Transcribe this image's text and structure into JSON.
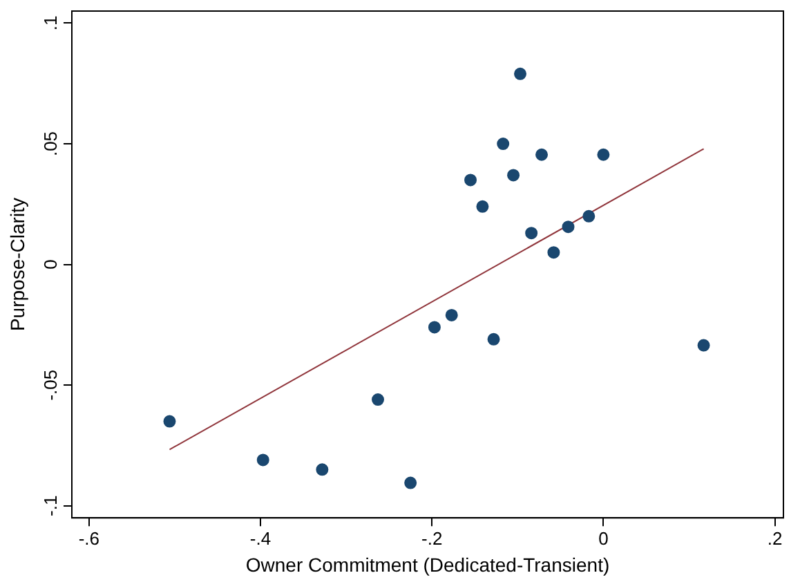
{
  "chart_data": {
    "type": "scatter",
    "xlabel": "Owner Commitment (Dedicated-Transient)",
    "ylabel": "Purpose-Clarity",
    "marker": "circle",
    "grid": false,
    "legend": false,
    "xlim": [
      -0.62,
      0.21
    ],
    "ylim": [
      -0.105,
      0.105
    ],
    "xticks": [
      {
        "value": -0.6,
        "label": "-.6"
      },
      {
        "value": -0.4,
        "label": "-.4"
      },
      {
        "value": -0.2,
        "label": "-.2"
      },
      0,
      {
        "value": 0.2,
        "label": ".2"
      }
    ],
    "yticks": [
      {
        "value": -0.1,
        "label": "-.1"
      },
      {
        "value": -0.05,
        "label": "-.05"
      },
      0,
      {
        "value": 0.05,
        "label": ".05"
      },
      {
        "value": 0.1,
        "label": ".1"
      }
    ],
    "series": [
      {
        "color": "#1a476f",
        "x": [
          -0.506,
          -0.397,
          -0.328,
          -0.263,
          -0.225,
          -0.197,
          -0.177,
          -0.128,
          -0.155,
          -0.141,
          -0.117,
          -0.105,
          -0.097,
          -0.084,
          -0.072,
          -0.058,
          -0.041,
          -0.017,
          0.0,
          0.117
        ],
        "values": [
          -0.065,
          -0.081,
          -0.085,
          -0.056,
          -0.0905,
          -0.026,
          -0.021,
          -0.031,
          0.035,
          0.024,
          0.05,
          0.037,
          0.079,
          0.013,
          0.0455,
          0.005,
          0.0156,
          0.02,
          0.0455,
          -0.0335
        ]
      },
      {
        "type": "line",
        "color": "#90353b",
        "marker": "none",
        "x": [
          -0.506,
          0.117
        ],
        "values": [
          -0.0767,
          0.0479
        ]
      }
    ]
  }
}
